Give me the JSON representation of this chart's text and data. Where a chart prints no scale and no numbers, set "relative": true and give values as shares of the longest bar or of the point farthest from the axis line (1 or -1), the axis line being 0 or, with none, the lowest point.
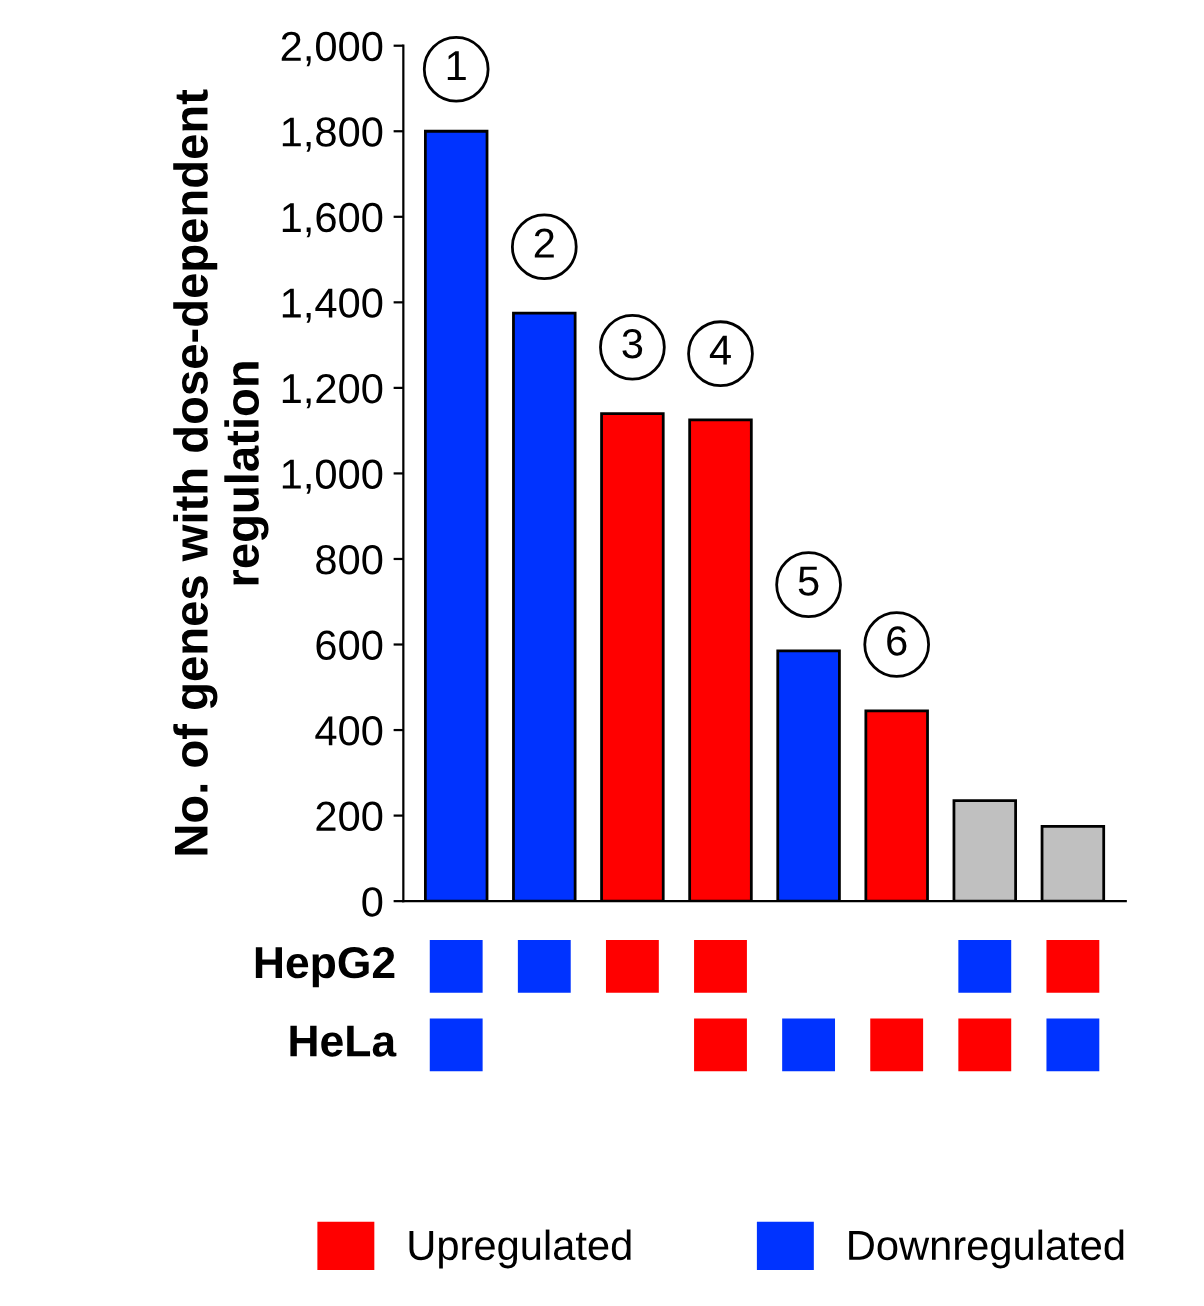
{
  "chart_data": [
    {
      "type": "bar",
      "ylabel": "No. of genes with dose-dependent regulation",
      "categories": [
        null,
        null,
        null,
        null,
        null,
        null,
        null,
        null
      ],
      "values": [
        1800,
        1375,
        1140,
        1125,
        585,
        445,
        235,
        175
      ],
      "colors": [
        "#0033ff",
        "#0033ff",
        "#ff0000",
        "#ff0000",
        "#0033ff",
        "#ff0000",
        "#c0c0c0",
        "#c0c0c0"
      ],
      "ylim": [
        0,
        2000
      ],
      "yticks": [
        {
          "value": 0,
          "label": "0"
        },
        {
          "value": 200,
          "label": "200"
        },
        {
          "value": 400,
          "label": "400"
        },
        {
          "value": 600,
          "label": "600"
        },
        {
          "value": 800,
          "label": "800"
        },
        {
          "value": 1000,
          "label": "1,000"
        },
        {
          "value": 1200,
          "label": "1,200"
        },
        {
          "value": 1400,
          "label": "1,400"
        },
        {
          "value": 1600,
          "label": "1,600"
        },
        {
          "value": 1800,
          "label": "1,800"
        },
        {
          "value": 2000,
          "label": "2,000"
        }
      ],
      "annotations": [
        {
          "text": "1",
          "y": 1945
        },
        {
          "text": "2",
          "y": 1530
        },
        {
          "text": "3",
          "y": 1295
        },
        {
          "text": "4",
          "y": 1280
        },
        {
          "text": "5",
          "y": 740
        },
        {
          "text": "6",
          "y": 600
        }
      ]
    },
    {
      "type": "bar",
      "relative": true,
      "ylabel": "HepG2",
      "categories": [
        null,
        null,
        null,
        null,
        null,
        null,
        null,
        null
      ],
      "series": [
        {
          "color": "#ff0000",
          "values": [
            null,
            null,
            1,
            1,
            null,
            null,
            null,
            1
          ]
        },
        {
          "color": "#0033ff",
          "values": [
            1,
            1,
            null,
            null,
            null,
            null,
            1,
            null
          ]
        }
      ]
    },
    {
      "type": "bar",
      "relative": true,
      "ylabel": "HeLa",
      "legend": "bottom",
      "categories": [
        null,
        null,
        null,
        null,
        null,
        null,
        null,
        null
      ],
      "series": [
        {
          "name": "Upregulated",
          "color": "#ff0000",
          "values": [
            null,
            null,
            null,
            1,
            null,
            1,
            1,
            null
          ]
        },
        {
          "name": "Downregulated",
          "color": "#0033ff",
          "values": [
            1,
            null,
            null,
            null,
            1,
            null,
            null,
            1
          ]
        }
      ]
    }
  ]
}
